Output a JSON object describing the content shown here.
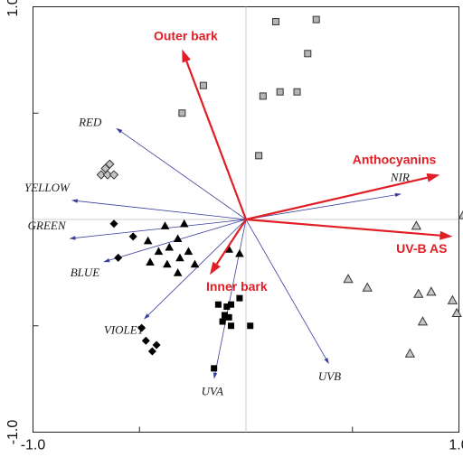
{
  "chart_data": {
    "type": "scatter",
    "xlim": [
      -1.0,
      1.0
    ],
    "ylim": [
      -1.0,
      1.0
    ],
    "x_ticks": [
      {
        "value": -1.0,
        "label": "-1.0"
      },
      {
        "value": 1.0,
        "label": "1.0"
      }
    ],
    "y_ticks": [
      {
        "value": -1.0,
        "label": "-1.0"
      },
      {
        "value": 1.0,
        "label": "1.0"
      }
    ],
    "grid": false,
    "colors": {
      "environmental_arrow": "#3a3f9e",
      "response_arrow": "#e11e25",
      "response_label": "#e11e25",
      "square_fill": "#b5b5b5",
      "diamond_fill": "#c4c4c4",
      "triangle_open_fill": "#c8c8c8",
      "filled_marker": "#000000",
      "zero_axis": "#cfcfcf",
      "frame": "#222222"
    },
    "environmental_arrows": [
      {
        "label": "RED",
        "x": -0.61,
        "y": 0.43
      },
      {
        "label": "YELLOW",
        "x": -0.82,
        "y": 0.09
      },
      {
        "label": "GREEN",
        "x": -0.83,
        "y": -0.09
      },
      {
        "label": "BLUE",
        "x": -0.67,
        "y": -0.2
      },
      {
        "label": "VIOLET",
        "x": -0.48,
        "y": -0.47
      },
      {
        "label": "NIR",
        "x": 0.73,
        "y": 0.12
      },
      {
        "label": "UVA",
        "x": -0.15,
        "y": -0.75
      },
      {
        "label": "UVB",
        "x": 0.39,
        "y": -0.68
      }
    ],
    "response_arrows": [
      {
        "label": "Outer bark",
        "x": -0.3,
        "y": 0.8
      },
      {
        "label": "Anthocyanins",
        "x": 0.91,
        "y": 0.21
      },
      {
        "label": "UV-B AS",
        "x": 0.97,
        "y": -0.08
      },
      {
        "label": "Inner bark",
        "x": -0.17,
        "y": -0.26
      }
    ],
    "groups": [
      {
        "marker": "square-open",
        "points": [
          [
            0.14,
            0.93
          ],
          [
            0.33,
            0.94
          ],
          [
            0.29,
            0.78
          ],
          [
            -0.2,
            0.63
          ],
          [
            0.16,
            0.6
          ],
          [
            0.08,
            0.58
          ],
          [
            0.24,
            0.6
          ],
          [
            -0.3,
            0.5
          ],
          [
            0.06,
            0.3
          ]
        ]
      },
      {
        "marker": "diamond-open",
        "points": [
          [
            -0.64,
            0.26
          ],
          [
            -0.66,
            0.24
          ],
          [
            -0.68,
            0.21
          ],
          [
            -0.65,
            0.21
          ],
          [
            -0.62,
            0.21
          ]
        ]
      },
      {
        "marker": "triangle-open",
        "points": [
          [
            1.02,
            0.02
          ],
          [
            0.8,
            -0.03
          ],
          [
            0.48,
            -0.28
          ],
          [
            0.57,
            -0.32
          ],
          [
            0.81,
            -0.35
          ],
          [
            0.87,
            -0.34
          ],
          [
            0.97,
            -0.38
          ],
          [
            0.99,
            -0.44
          ],
          [
            0.83,
            -0.48
          ],
          [
            0.77,
            -0.63
          ]
        ]
      },
      {
        "marker": "triangle-filled",
        "points": [
          [
            -0.38,
            -0.03
          ],
          [
            -0.46,
            -0.1
          ],
          [
            -0.32,
            -0.09
          ],
          [
            -0.36,
            -0.13
          ],
          [
            -0.41,
            -0.15
          ],
          [
            -0.45,
            -0.2
          ],
          [
            -0.31,
            -0.18
          ],
          [
            -0.29,
            -0.02
          ],
          [
            -0.27,
            -0.15
          ],
          [
            -0.37,
            -0.21
          ],
          [
            -0.24,
            -0.21
          ],
          [
            -0.32,
            -0.25
          ],
          [
            -0.08,
            -0.14
          ],
          [
            -0.03,
            -0.16
          ]
        ]
      },
      {
        "marker": "square-filled",
        "points": [
          [
            -0.13,
            -0.4
          ],
          [
            -0.1,
            -0.45
          ],
          [
            -0.07,
            -0.4
          ],
          [
            -0.07,
            -0.5
          ],
          [
            -0.03,
            -0.37
          ],
          [
            0.02,
            -0.5
          ],
          [
            -0.15,
            -0.7
          ],
          [
            -0.08,
            -0.46
          ],
          [
            -0.09,
            -0.41
          ],
          [
            -0.11,
            -0.48
          ]
        ]
      },
      {
        "marker": "diamond-filled",
        "points": [
          [
            -0.62,
            -0.02
          ],
          [
            -0.53,
            -0.08
          ],
          [
            -0.6,
            -0.18
          ],
          [
            -0.49,
            -0.51
          ],
          [
            -0.47,
            -0.57
          ],
          [
            -0.44,
            -0.62
          ],
          [
            -0.42,
            -0.59
          ]
        ]
      }
    ]
  }
}
